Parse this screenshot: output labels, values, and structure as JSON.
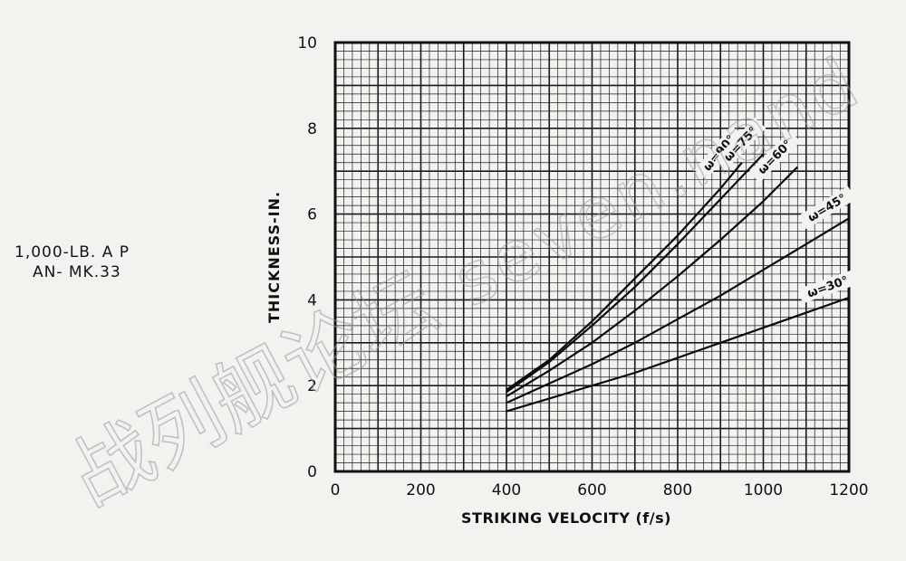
{
  "side_label": {
    "line1": "1,000-LB. A P",
    "line2": "AN- MK.33"
  },
  "watermark": {
    "cjk": "战列舰论坛",
    "latin": "seven.nand"
  },
  "colors": {
    "background": "#f2f2ef",
    "ink": "#111111"
  },
  "chart_data": {
    "type": "line",
    "title": "",
    "xlabel": "STRIKING VELOCITY (f/s)",
    "ylabel": "THICKNESS-IN.",
    "xlim": [
      0,
      1200
    ],
    "ylim": [
      0,
      10
    ],
    "xticks": [
      "0",
      "200",
      "400",
      "600",
      "800",
      "1000",
      "1200"
    ],
    "yticks": [
      "0",
      "2",
      "4",
      "6",
      "8",
      "10"
    ],
    "grid": true,
    "series": [
      {
        "name": "ω=90°",
        "x": [
          400,
          500,
          600,
          700,
          800,
          900,
          950
        ],
        "y": [
          1.9,
          2.6,
          3.5,
          4.5,
          5.5,
          6.6,
          7.2
        ]
      },
      {
        "name": "ω=75°",
        "x": [
          400,
          500,
          600,
          700,
          800,
          900,
          1000
        ],
        "y": [
          1.85,
          2.55,
          3.4,
          4.3,
          5.3,
          6.35,
          7.4
        ]
      },
      {
        "name": "ω=60°",
        "x": [
          400,
          500,
          600,
          700,
          800,
          900,
          1000,
          1080
        ],
        "y": [
          1.75,
          2.35,
          3.0,
          3.75,
          4.55,
          5.4,
          6.3,
          7.1
        ]
      },
      {
        "name": "ω=45°",
        "x": [
          400,
          500,
          600,
          700,
          800,
          900,
          1000,
          1100,
          1200
        ],
        "y": [
          1.6,
          2.05,
          2.5,
          3.0,
          3.55,
          4.1,
          4.7,
          5.3,
          5.9
        ]
      },
      {
        "name": "ω=30°",
        "x": [
          400,
          500,
          600,
          700,
          800,
          900,
          1000,
          1100,
          1200
        ],
        "y": [
          1.4,
          1.7,
          2.0,
          2.3,
          2.65,
          3.0,
          3.35,
          3.7,
          4.05
        ]
      }
    ]
  }
}
